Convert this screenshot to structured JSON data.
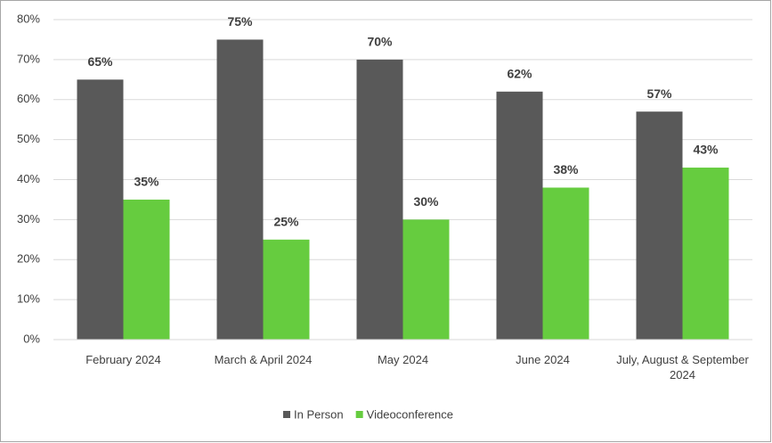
{
  "chart_data": {
    "type": "bar",
    "categories": [
      "February 2024",
      "March & April 2024",
      "May 2024",
      "June 2024",
      "July, August & September 2024"
    ],
    "series": [
      {
        "name": "In Person",
        "color": "#595959",
        "values": [
          65,
          75,
          70,
          62,
          57
        ],
        "value_labels": [
          "65%",
          "75%",
          "70%",
          "62%",
          "57%"
        ]
      },
      {
        "name": "Videoconference",
        "color": "#66cc3f",
        "values": [
          35,
          25,
          30,
          38,
          43
        ],
        "value_labels": [
          "35%",
          "25%",
          "30%",
          "38%",
          "43%"
        ]
      }
    ],
    "ylim": [
      0,
      80
    ],
    "yticks": [
      {
        "value": 0,
        "label": "0%"
      },
      {
        "value": 10,
        "label": "10%"
      },
      {
        "value": 20,
        "label": "20%"
      },
      {
        "value": 30,
        "label": "30%"
      },
      {
        "value": 40,
        "label": "40%"
      },
      {
        "value": 50,
        "label": "50%"
      },
      {
        "value": 60,
        "label": "60%"
      },
      {
        "value": 70,
        "label": "70%"
      },
      {
        "value": 80,
        "label": "80%"
      }
    ],
    "grid": true,
    "legend": "bottom"
  }
}
